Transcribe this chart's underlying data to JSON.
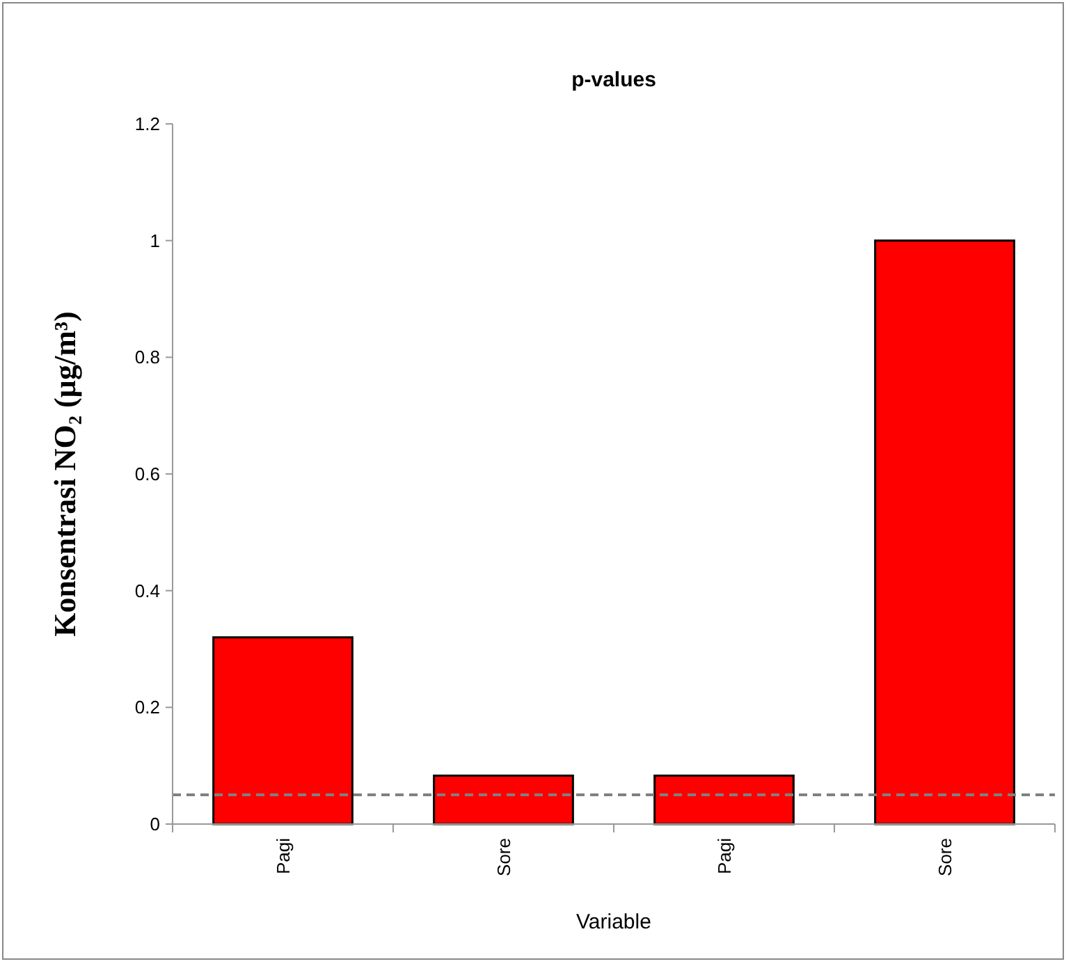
{
  "chart_data": {
    "type": "bar",
    "title": "p-values",
    "xlabel": "Variable",
    "ylabel": "Konsentrasi NO₂ (µg/m³)",
    "categories": [
      "Pagi",
      "Sore",
      "Pagi",
      "Sore"
    ],
    "values": [
      0.32,
      0.083,
      0.083,
      1.0
    ],
    "color": "#ff0000",
    "ylim": [
      0,
      1.2
    ],
    "yticks": [
      0,
      0.2,
      0.4,
      0.6,
      0.8,
      1,
      1.2
    ],
    "grid": false,
    "ref_lines": [
      {
        "axis": "y",
        "value": 0.05,
        "color": "#808080",
        "line_style": "dashed"
      }
    ]
  }
}
